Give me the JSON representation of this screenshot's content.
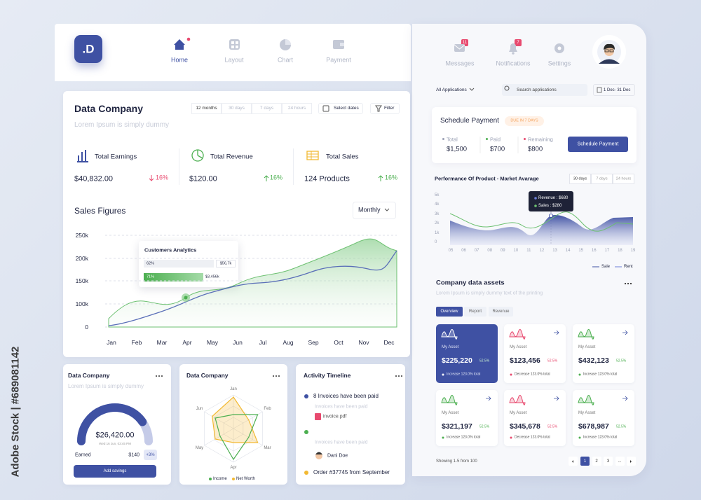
{
  "watermark": "Adobe Stock | #689081142",
  "nav": {
    "logo": ".D",
    "items": [
      "Home",
      "Layout",
      "Chart",
      "Payment"
    ],
    "active": 0,
    "right": [
      {
        "label": "Messages",
        "badge": "11"
      },
      {
        "label": "Notifications",
        "badge": "7"
      },
      {
        "label": "Settings"
      }
    ]
  },
  "overview": {
    "title": "Data Company",
    "subtitle": "Lorem Ipsum is simply dummy",
    "ranges": [
      "12 months",
      "30 days",
      "7 days",
      "24 hours"
    ],
    "select_dates": "Select dates",
    "filter": "Filter",
    "stats": [
      {
        "label": "Total Earnings",
        "value": "$40,832.00",
        "change": "16%",
        "color": "#e84a6f"
      },
      {
        "label": "Total Revenue",
        "value": "$120.00",
        "change": "16%",
        "color": "#4caf50"
      },
      {
        "label": "Total Sales",
        "value": "124 Products",
        "change": "16%",
        "color": "#4caf50"
      }
    ]
  },
  "sales": {
    "title": "Sales Figures",
    "period": "Monthly",
    "yticks": [
      "250k",
      "200k",
      "150k",
      "100k",
      "0"
    ],
    "months": [
      "Jan",
      "Feb",
      "Mar",
      "Apr",
      "May",
      "Jun",
      "Jul",
      "Aug",
      "Sep",
      "Oct",
      "Nov",
      "Dec"
    ],
    "tooltip": {
      "title": "Customers Analytics",
      "rows": [
        {
          "percent": "62%",
          "value": "$56,7k"
        },
        {
          "percent": "71%",
          "value": "$3,456k"
        }
      ]
    }
  },
  "cards": {
    "savings": {
      "title": "Data Company",
      "subtitle": "Lorem Ipsum is simply dummy",
      "amount": "$26,420.00",
      "date": "Wed 16 Jun, 03:45 PM",
      "earned_label": "Earned",
      "earned": "$140",
      "earned_change": "+3%",
      "button": "Add savings"
    },
    "radar": {
      "title": "Data Company",
      "axes": [
        "Jan",
        "Feb",
        "Mar",
        "Apr",
        "May",
        "Jun"
      ],
      "legend": [
        "Income",
        "Net Worth"
      ]
    },
    "timeline": {
      "title": "Activity Timeline",
      "items": [
        "8 Invoices have been paid",
        "Invoices have been paid",
        "invoice.pdf",
        "Invoices have been paid",
        "Dani Doe",
        "Order #37745 from September"
      ]
    }
  },
  "toolbar": {
    "scope": "All Applications",
    "search": "Search applications",
    "dates": "1 Dec- 31 Dec"
  },
  "schedule": {
    "title": "Schedule Payment",
    "badge": "DUE IN 7 DAYS",
    "items": [
      {
        "label": "Total",
        "value": "$1,500",
        "color": "#9aa0b4"
      },
      {
        "label": "Paid",
        "value": "$700",
        "color": "#4caf50"
      },
      {
        "label": "Remaining",
        "value": "$800",
        "color": "#e84a6f"
      }
    ],
    "button": "Schedule Payment"
  },
  "performance": {
    "title": "Performance Of Product - Market Avarage",
    "ranges": [
      "30 days",
      "7 days",
      "24 hours"
    ],
    "yticks": [
      "5k",
      "4k",
      "3k",
      "2k",
      "1k",
      "0"
    ],
    "x": [
      "05",
      "06",
      "07",
      "08",
      "09",
      "10",
      "11",
      "12",
      "13",
      "14",
      "15",
      "16",
      "17",
      "18",
      "19"
    ],
    "tooltip": [
      "Revenue : $680",
      "Sales : $280"
    ],
    "legend": [
      "Sale",
      "Rent"
    ]
  },
  "assets": {
    "title": "Company data assets",
    "subtitle": "Lorem Ipsum is simply dummy text of the printing",
    "tabs": [
      "Overview",
      "Report",
      "Revenue"
    ],
    "selected": 0,
    "items": [
      {
        "label": "My Asset",
        "value": "$225,220",
        "change": "52.5%",
        "note": "Increase 123.0% total",
        "color": "#4caf50"
      },
      {
        "label": "My Asset",
        "value": "$123,456",
        "change": "52.5%",
        "note": "Decrease 123.0% total",
        "color": "#e84a6f"
      },
      {
        "label": "My Asset",
        "value": "$432,123",
        "change": "52.5%",
        "note": "Increase 123.0% total",
        "color": "#4caf50"
      },
      {
        "label": "My Asset",
        "value": "$321,197",
        "change": "52.5%",
        "note": "Increase 123.0% total",
        "color": "#4caf50"
      },
      {
        "label": "My Asset",
        "value": "$345,678",
        "change": "52.5%",
        "note": "Decrease 123.0% total",
        "color": "#e84a6f"
      },
      {
        "label": "My Asset",
        "value": "$678,987",
        "change": "52.5%",
        "note": "Increase 123.0% total",
        "color": "#4caf50"
      }
    ],
    "footer": "Showing 1-5 from 100",
    "pages": [
      "1",
      "2",
      "3",
      "..."
    ]
  }
}
